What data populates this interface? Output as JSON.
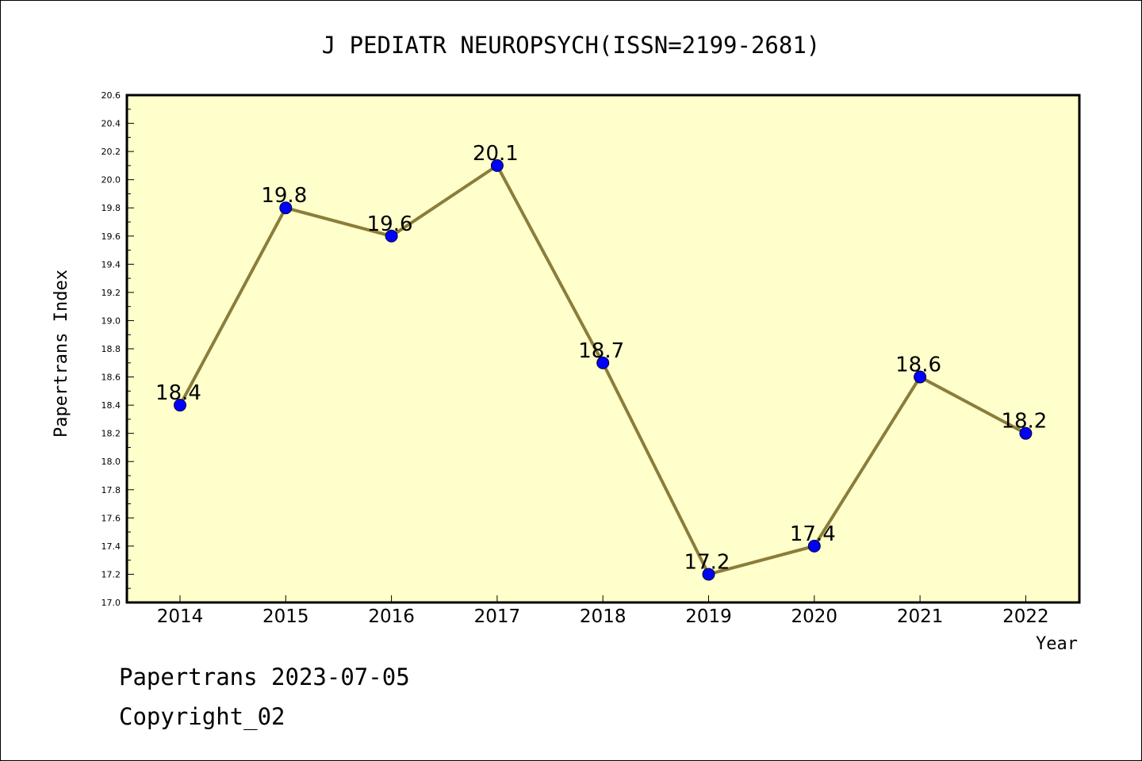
{
  "chart_data": {
    "type": "line",
    "title": "J PEDIATR NEUROPSYCH(ISSN=2199-2681)",
    "xlabel": "Year",
    "ylabel": "Papertrans Index",
    "categories": [
      "2014",
      "2015",
      "2016",
      "2017",
      "2018",
      "2019",
      "2020",
      "2021",
      "2022"
    ],
    "values": [
      18.4,
      19.8,
      19.6,
      20.1,
      18.7,
      17.2,
      17.4,
      18.6,
      18.2
    ],
    "data_labels": [
      "18.4",
      "19.8",
      "19.6",
      "20.1",
      "18.7",
      "17.2",
      "17.4",
      "18.6",
      "18.2"
    ],
    "ylim": [
      17.0,
      20.6
    ],
    "yticks": [
      "17.0",
      "17.2",
      "17.4",
      "17.6",
      "17.8",
      "18.0",
      "18.2",
      "18.4",
      "18.6",
      "18.8",
      "19.0",
      "19.2",
      "19.4",
      "19.6",
      "19.8",
      "20.0",
      "20.2",
      "20.4",
      "20.6"
    ],
    "grid": false,
    "colors": {
      "plot_background": "#ffffcc",
      "line": "#8b7d3a",
      "marker": "#0000ff"
    }
  },
  "footer": {
    "line1": "Papertrans 2023-07-05",
    "line2": "Copyright_02"
  }
}
